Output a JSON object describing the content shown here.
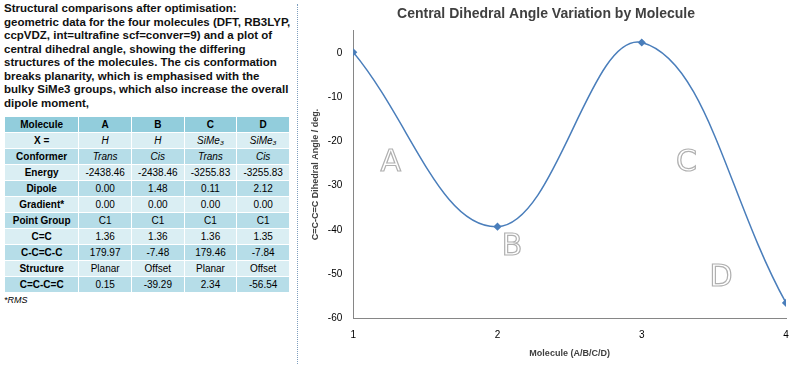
{
  "text": "Structural comparisons after optimisation: geometric data for the four molecules (DFT, RB3LYP, ccpVDZ, int=ultrafine scf=conver=9) and a plot of central dihedral angle, showing the differing structures of the molecules. The cis conformation breaks planarity, which is emphasised with the bulky SiMe3 groups, which also increase the overall dipole moment,",
  "table": {
    "rows": [
      [
        "Molecule",
        "A",
        "B",
        "C",
        "D"
      ],
      [
        "X =",
        "H",
        "H",
        "SiMe₃",
        "SiMe₃"
      ],
      [
        "Conformer",
        "Trans",
        "Cis",
        "Trans",
        "Cis"
      ],
      [
        "Energy",
        "-2438.46",
        "-2438.46",
        "-3255.83",
        "-3255.83"
      ],
      [
        "Dipole",
        "0.00",
        "1.48",
        "0.11",
        "2.12"
      ],
      [
        "Gradient*",
        "0.00",
        "0.00",
        "0.00",
        "0.00"
      ],
      [
        "Point Group",
        "C1",
        "C1",
        "C1",
        "C1"
      ],
      [
        "C=C",
        "1.36",
        "1.36",
        "1.36",
        "1.35"
      ],
      [
        "C-C=C-C",
        "179.97",
        "-7.48",
        "179.46",
        "-7.84"
      ],
      [
        "Structure",
        "Planar",
        "Offset",
        "Planar",
        "Offset"
      ],
      [
        "C=C-C=C",
        "0.15",
        "-39.29",
        "2.34",
        "-56.54"
      ]
    ]
  },
  "footnote": "*RMS",
  "chart_data": {
    "type": "line",
    "title": "Central Dihedral Angle Variation by Molecule",
    "x_label": "Molecule (A/B/C/D)",
    "y_label": "C=C-C=C Dihedral Angle / deg.",
    "x": [
      1,
      2,
      3,
      4
    ],
    "values": [
      0.15,
      -39.29,
      2.34,
      -56.54
    ],
    "color": "#4a7ebb",
    "marker": "diamond",
    "line_style": "smooth",
    "xlim": [
      1,
      4
    ],
    "xticks": [
      1,
      2,
      3,
      4
    ],
    "ylim": [
      -60,
      5
    ],
    "yticks": [
      -60,
      -50,
      -40,
      -30,
      -20,
      -10,
      0
    ],
    "grid": false,
    "annotations": [
      {
        "text": "A",
        "x": 1.26,
        "y": -25
      },
      {
        "text": "B",
        "x": 2.1,
        "y": -44
      },
      {
        "text": "C",
        "x": 3.31,
        "y": -25
      },
      {
        "text": "D",
        "x": 3.55,
        "y": -51
      }
    ]
  }
}
